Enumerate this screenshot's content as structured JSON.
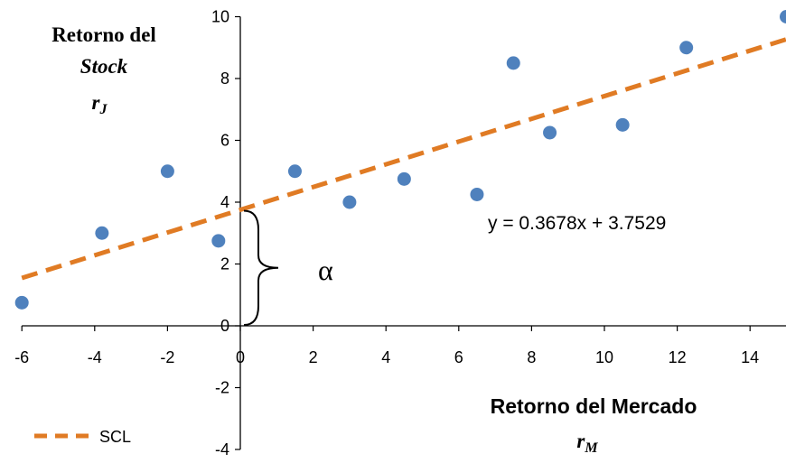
{
  "chart_data": {
    "type": "scatter",
    "xlim": [
      -6,
      15
    ],
    "ylim": [
      -4,
      10
    ],
    "x_ticks": [
      -6,
      -4,
      -2,
      0,
      2,
      4,
      6,
      8,
      10,
      12,
      14
    ],
    "y_ticks": [
      -4,
      -2,
      0,
      2,
      4,
      6,
      8,
      10
    ],
    "grid": false,
    "series": [
      {
        "x": [
          -6,
          -3.8,
          -2,
          -0.6,
          1.5,
          3,
          4.5,
          6.5,
          7.5,
          8.5,
          10.5,
          12.25,
          15
        ],
        "y": [
          0.75,
          3,
          5,
          2.75,
          5,
          4,
          4.75,
          4.25,
          8.5,
          6.25,
          6.5,
          9,
          10
        ],
        "color": "#4F81BD"
      },
      {
        "name": "SCL",
        "type": "line",
        "style": "dashed",
        "slope": 0.3678,
        "intercept": 3.7529,
        "color": "#E07B24"
      }
    ],
    "equation": "y = 0.3678x + 3.7529",
    "alpha_label": "α",
    "y_title": {
      "line1": "Retorno del",
      "line2": "Stock",
      "symbol": "r",
      "subscript": "J"
    },
    "x_title": {
      "line1": "Retorno del Mercado",
      "symbol": "r",
      "subscript": "M"
    },
    "legend": {
      "position": "bottom-left",
      "entries": [
        "SCL"
      ]
    }
  }
}
